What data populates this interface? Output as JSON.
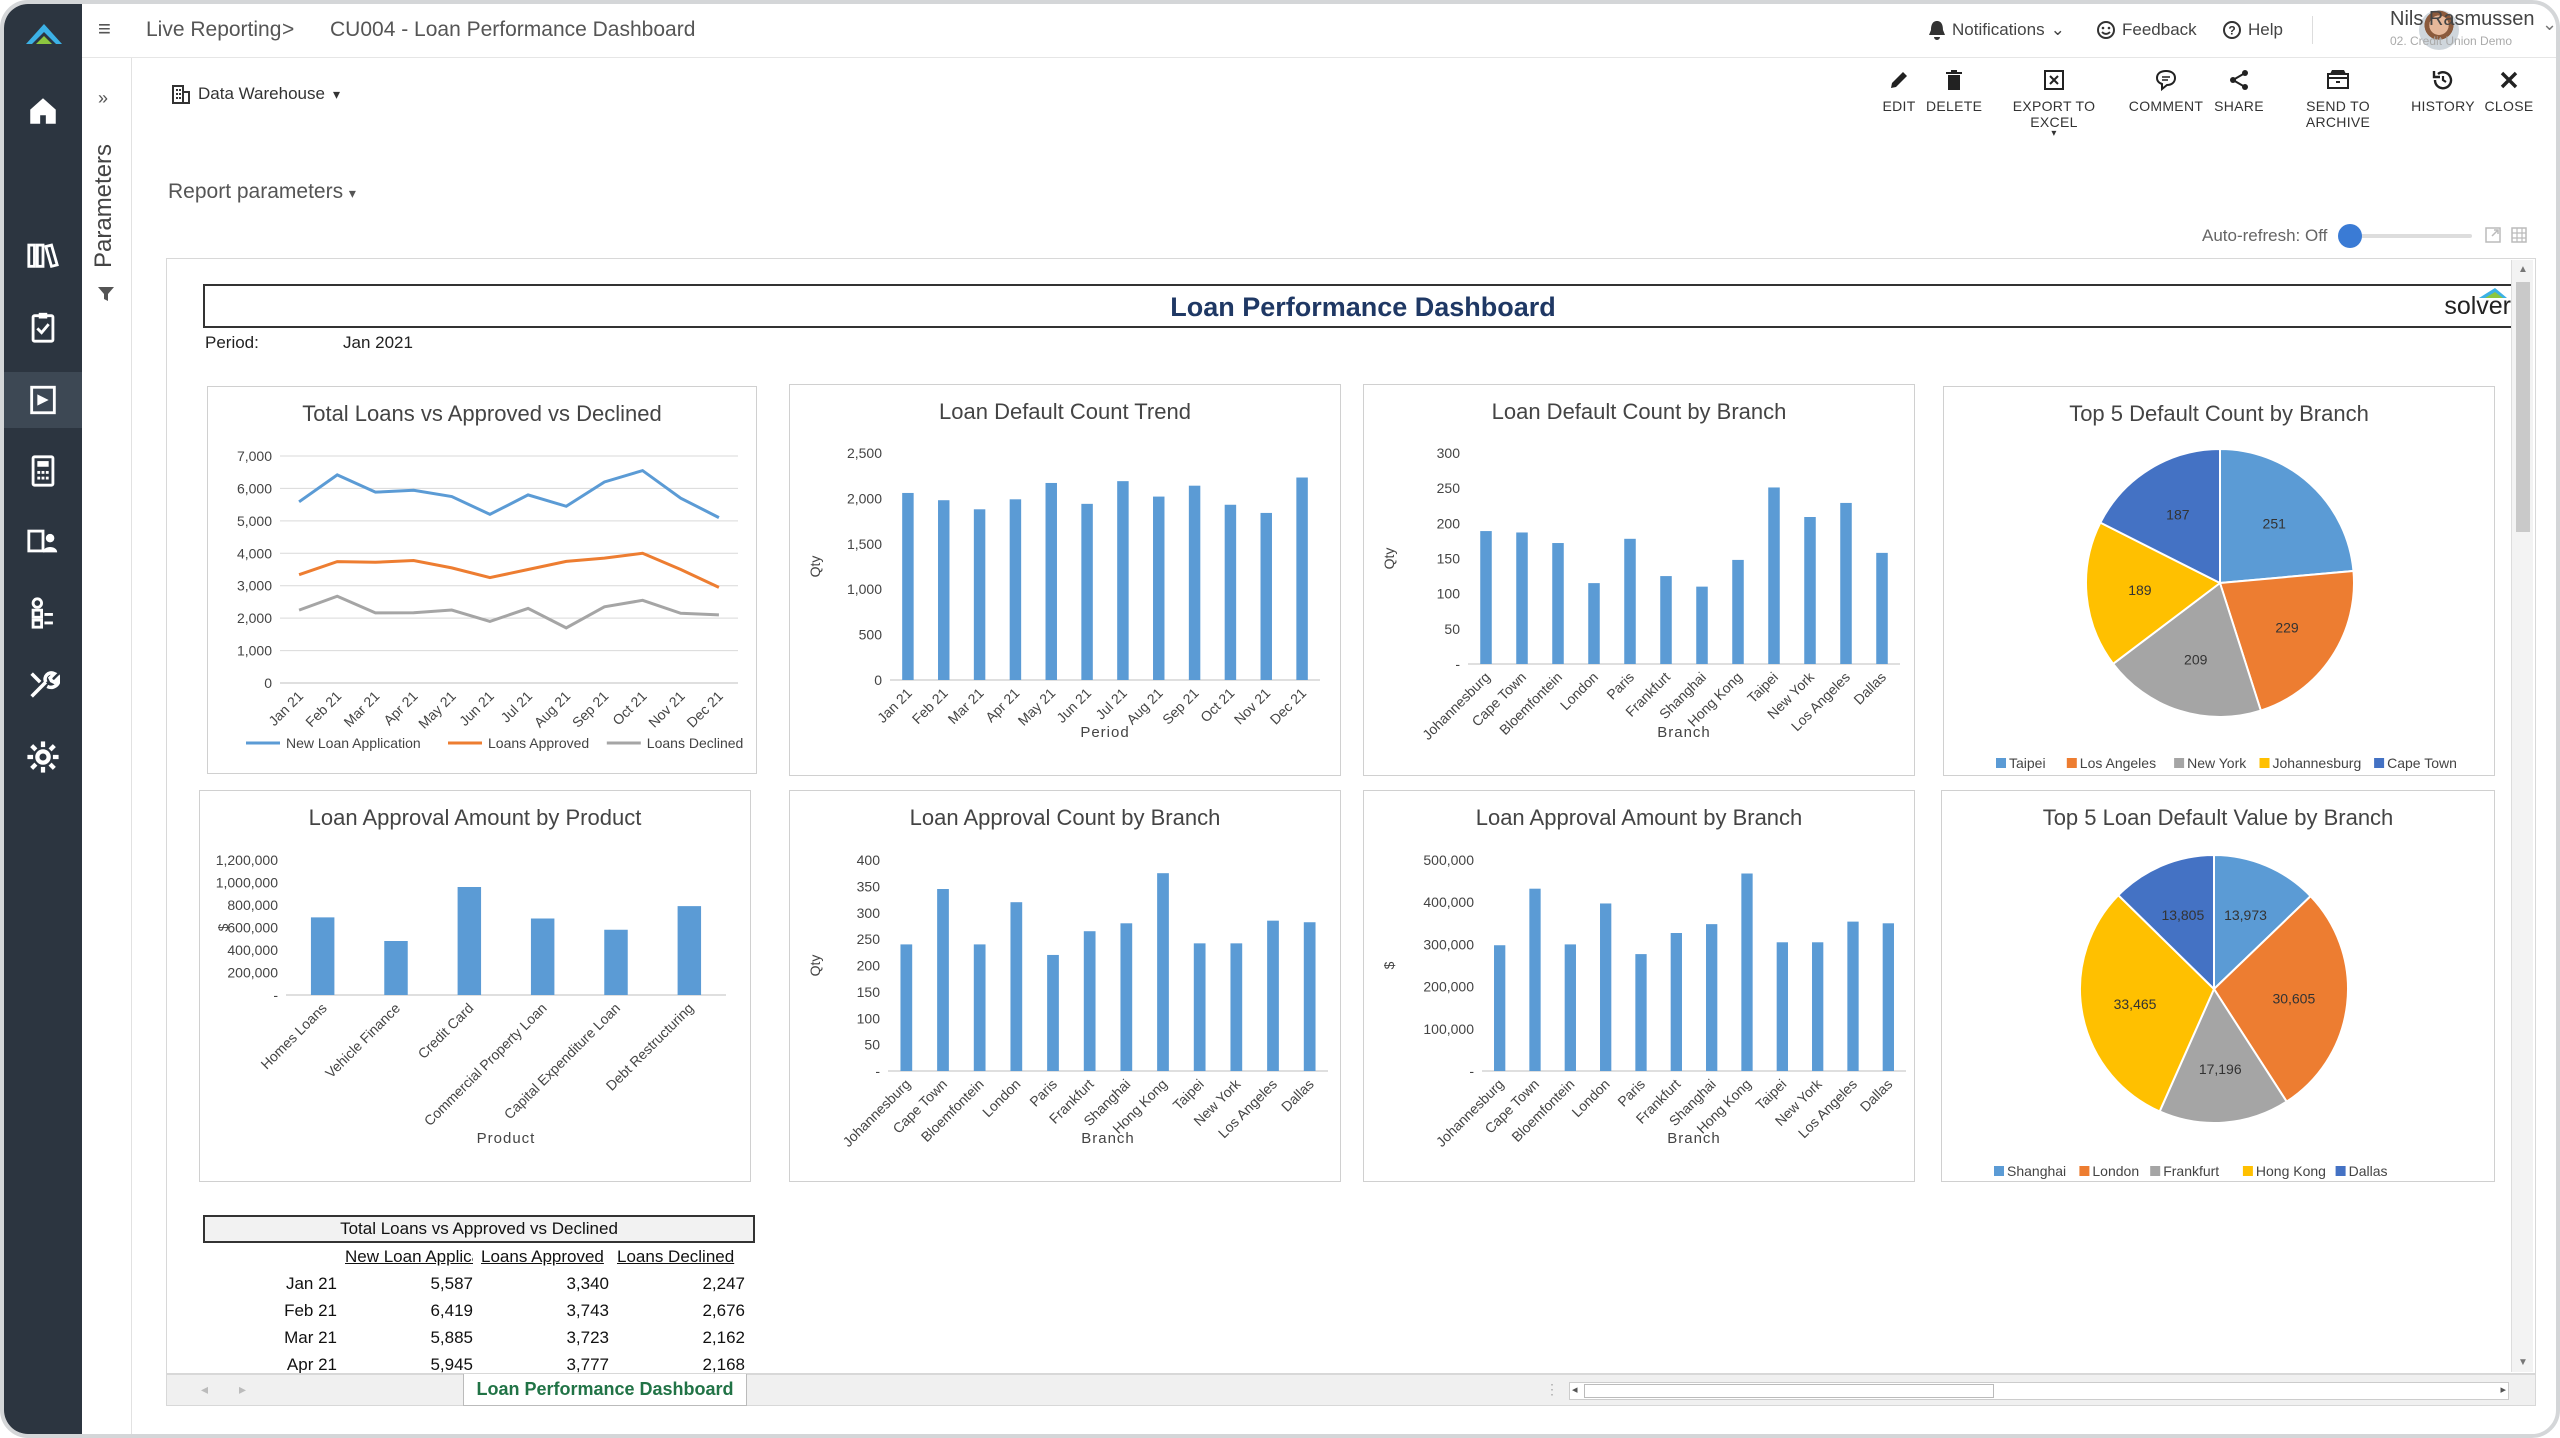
{
  "app": {
    "breadcrumb_root": "Live Reporting",
    "breadcrumb_sep": ">",
    "breadcrumb_page": "CU004 - Loan Performance Dashboard"
  },
  "topbar": {
    "notifications": "Notifications",
    "feedback": "Feedback",
    "help": "Help",
    "user_name": "Nils Rasmussen",
    "user_org": "02. Credit Union Demo"
  },
  "sidebar": {
    "icons": [
      "home-icon",
      "library-icon",
      "clipboard-icon",
      "report-icon",
      "calculator-icon",
      "user-settings-icon",
      "data-flow-icon",
      "tools-icon",
      "gear-icon"
    ]
  },
  "params_panel": {
    "label": "Parameters",
    "expand": "»"
  },
  "datasource": {
    "label": "Data Warehouse"
  },
  "actions": [
    {
      "name": "edit",
      "label": "EDIT",
      "icon": "pencil-icon"
    },
    {
      "name": "delete",
      "label": "DELETE",
      "icon": "trash-icon"
    },
    {
      "name": "export-excel",
      "label": "EXPORT TO EXCEL",
      "icon": "excel-icon"
    },
    {
      "name": "comment",
      "label": "COMMENT",
      "icon": "comment-icon"
    },
    {
      "name": "share",
      "label": "SHARE",
      "icon": "share-icon"
    },
    {
      "name": "send-archive",
      "label": "SEND TO ARCHIVE",
      "icon": "archive-icon"
    },
    {
      "name": "history",
      "label": "HISTORY",
      "icon": "history-icon"
    },
    {
      "name": "close",
      "label": "CLOSE",
      "icon": "close-icon"
    }
  ],
  "report_params": {
    "label": "Report parameters"
  },
  "autorefresh": {
    "label": "Auto-refresh: Off",
    "state": 0
  },
  "report": {
    "title": "Loan Performance Dashboard",
    "brand": "solver",
    "period_label": "Period:",
    "period_value": "Jan 2021"
  },
  "sheet_tab": "Loan Performance Dashboard",
  "colors": {
    "blue": "#5b9bd5",
    "orange": "#ed7d31",
    "gray": "#a5a5a5",
    "yellow": "#ffc000",
    "darkblue": "#4472c4",
    "nav": "#2c3540",
    "title": "#1f3864"
  },
  "chart_data": [
    {
      "id": "total-loans",
      "type": "line",
      "title": "Total Loans vs Approved vs Declined",
      "categories": [
        "Jan 21",
        "Feb 21",
        "Mar 21",
        "Apr 21",
        "May 21",
        "Jun 21",
        "Jul 21",
        "Aug 21",
        "Sep 21",
        "Oct 21",
        "Nov 21",
        "Dec 21"
      ],
      "series": [
        {
          "name": "New Loan Application",
          "color": "#5b9bd5",
          "values": [
            5587,
            6419,
            5885,
            5945,
            5750,
            5200,
            5800,
            5450,
            6200,
            6550,
            5700,
            5100
          ]
        },
        {
          "name": "Loans Approved",
          "color": "#ed7d31",
          "values": [
            3340,
            3743,
            3723,
            3777,
            3550,
            3250,
            3500,
            3750,
            3850,
            4000,
            3500,
            2950
          ]
        },
        {
          "name": "Loans Declined",
          "color": "#a5a5a5",
          "values": [
            2247,
            2676,
            2162,
            2168,
            2250,
            1900,
            2300,
            1700,
            2350,
            2550,
            2150,
            2100
          ]
        }
      ],
      "yticks": [
        "0",
        "1,000",
        "2,000",
        "3,000",
        "4,000",
        "5,000",
        "6,000",
        "7,000"
      ],
      "ylim": [
        0,
        7000
      ],
      "legend": "bottom"
    },
    {
      "id": "default-trend",
      "type": "bar",
      "title": "Loan Default Count Trend",
      "categories": [
        "Jan 21",
        "Feb 21",
        "Mar 21",
        "Apr 21",
        "May 21",
        "Jun 21",
        "Jul 21",
        "Aug 21",
        "Sep 21",
        "Oct 21",
        "Nov 21",
        "Dec 21"
      ],
      "values": [
        2060,
        1980,
        1880,
        1990,
        2170,
        1940,
        2190,
        2020,
        2140,
        1930,
        1840,
        2230
      ],
      "yticks": [
        "0",
        "500",
        "1,000",
        "1,500",
        "2,000",
        "2,500"
      ],
      "ylim": [
        0,
        2500
      ],
      "xlabel": "Period",
      "ylabel": "Qty"
    },
    {
      "id": "default-branch",
      "type": "bar",
      "title": "Loan Default Count by Branch",
      "categories": [
        "Johannesburg",
        "Cape Town",
        "Bloemfontein",
        "London",
        "Paris",
        "Frankfurt",
        "Shanghai",
        "Hong Kong",
        "Taipei",
        "New York",
        "Los Angeles",
        "Dallas"
      ],
      "values": [
        189,
        187,
        172,
        115,
        178,
        125,
        110,
        148,
        251,
        209,
        229,
        158
      ],
      "yticks": [
        "-",
        "50",
        "100",
        "150",
        "200",
        "250",
        "300"
      ],
      "ylim": [
        0,
        300
      ],
      "xlabel": "Branch",
      "ylabel": "Qty"
    },
    {
      "id": "top5-default-count",
      "type": "pie",
      "title": "Top 5 Default Count by Branch",
      "slices": [
        {
          "name": "Taipei",
          "value": 251,
          "label": "251",
          "color": "#5b9bd5"
        },
        {
          "name": "Los Angeles",
          "value": 229,
          "label": "229",
          "color": "#ed7d31"
        },
        {
          "name": "New York",
          "value": 209,
          "label": "209",
          "color": "#a5a5a5"
        },
        {
          "name": "Johannesburg",
          "value": 189,
          "label": "189",
          "color": "#ffc000"
        },
        {
          "name": "Cape Town",
          "value": 187,
          "label": "187",
          "color": "#4472c4"
        }
      ],
      "legend": "bottom"
    },
    {
      "id": "approval-amount-product",
      "type": "bar",
      "title": "Loan Approval Amount by Product",
      "categories": [
        "Homes Loans",
        "Vehicle Finance",
        "Credit Card",
        "Commercial Property Loan",
        "Capital Expenditure Loan",
        "Debt Restructuring"
      ],
      "values": [
        690000,
        480000,
        960000,
        680000,
        580000,
        790000
      ],
      "yticks": [
        "-",
        "200,000",
        "400,000",
        "600,000",
        "800,000",
        "1,000,000",
        "1,200,000"
      ],
      "ylim": [
        0,
        1200000
      ],
      "xlabel": "Product",
      "ylabel": "$"
    },
    {
      "id": "approval-count-branch",
      "type": "bar",
      "title": "Loan Approval Count by Branch",
      "categories": [
        "Johannesburg",
        "Cape Town",
        "Bloemfontein",
        "London",
        "Paris",
        "Frankfurt",
        "Shanghai",
        "Hong Kong",
        "Taipei",
        "New York",
        "Los Angeles",
        "Dallas"
      ],
      "values": [
        240,
        345,
        240,
        320,
        220,
        265,
        280,
        375,
        242,
        242,
        285,
        282
      ],
      "yticks": [
        "-",
        "50",
        "100",
        "150",
        "200",
        "250",
        "300",
        "350",
        "400"
      ],
      "ylim": [
        0,
        400
      ],
      "xlabel": "Branch",
      "ylabel": "Qty"
    },
    {
      "id": "approval-amount-branch",
      "type": "bar",
      "title": "Loan Approval Amount by Branch",
      "categories": [
        "Johannesburg",
        "Cape Town",
        "Bloemfontein",
        "London",
        "Paris",
        "Frankfurt",
        "Shanghai",
        "Hong Kong",
        "Taipei",
        "New York",
        "Los Angeles",
        "Dallas"
      ],
      "values": [
        298000,
        432000,
        300000,
        397000,
        277000,
        327000,
        348000,
        468000,
        305000,
        305000,
        354000,
        350000
      ],
      "yticks": [
        "-",
        "100,000",
        "200,000",
        "300,000",
        "400,000",
        "500,000"
      ],
      "ylim": [
        0,
        500000
      ],
      "xlabel": "Branch",
      "ylabel": "$"
    },
    {
      "id": "top5-default-value",
      "type": "pie",
      "title": "Top 5 Loan Default Value by Branch",
      "slices": [
        {
          "name": "Shanghai",
          "value": 13973,
          "label": "13,973",
          "color": "#5b9bd5"
        },
        {
          "name": "London",
          "value": 30605,
          "label": "30,605",
          "color": "#ed7d31"
        },
        {
          "name": "Frankfurt",
          "value": 17196,
          "label": "17,196",
          "color": "#a5a5a5"
        },
        {
          "name": "Hong Kong",
          "value": 33465,
          "label": "33,465",
          "color": "#ffc000"
        },
        {
          "name": "Dallas",
          "value": 13805,
          "label": "13,805",
          "color": "#4472c4"
        }
      ],
      "legend": "bottom"
    },
    {
      "id": "data-table",
      "type": "table",
      "title": "Total Loans vs Approved vs Declined",
      "columns": [
        "New Loan Applicati",
        "Loans Approved",
        "Loans Declined"
      ],
      "rows": [
        {
          "label": "Jan 21",
          "values": [
            "5,587",
            "3,340",
            "2,247"
          ]
        },
        {
          "label": "Feb 21",
          "values": [
            "6,419",
            "3,743",
            "2,676"
          ]
        },
        {
          "label": "Mar 21",
          "values": [
            "5,885",
            "3,723",
            "2,162"
          ]
        },
        {
          "label": "Apr 21",
          "values": [
            "5,945",
            "3,777",
            "2,168"
          ]
        }
      ]
    }
  ]
}
